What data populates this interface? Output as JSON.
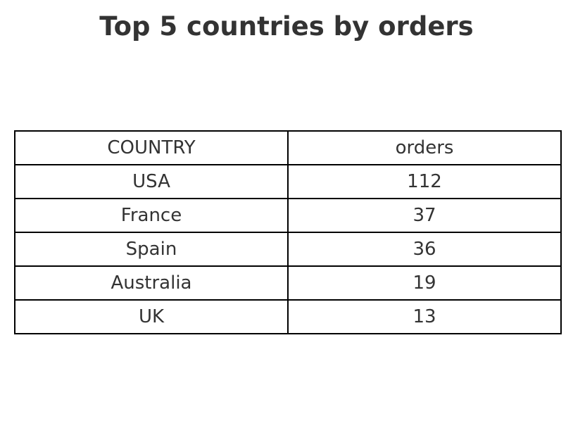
{
  "chart_data": {
    "type": "table",
    "title": "Top 5 countries by orders",
    "columns": [
      "COUNTRY",
      "orders"
    ],
    "rows": [
      [
        "USA",
        "112"
      ],
      [
        "France",
        "37"
      ],
      [
        "Spain",
        "36"
      ],
      [
        "Australia",
        "19"
      ],
      [
        "UK",
        "13"
      ]
    ]
  }
}
